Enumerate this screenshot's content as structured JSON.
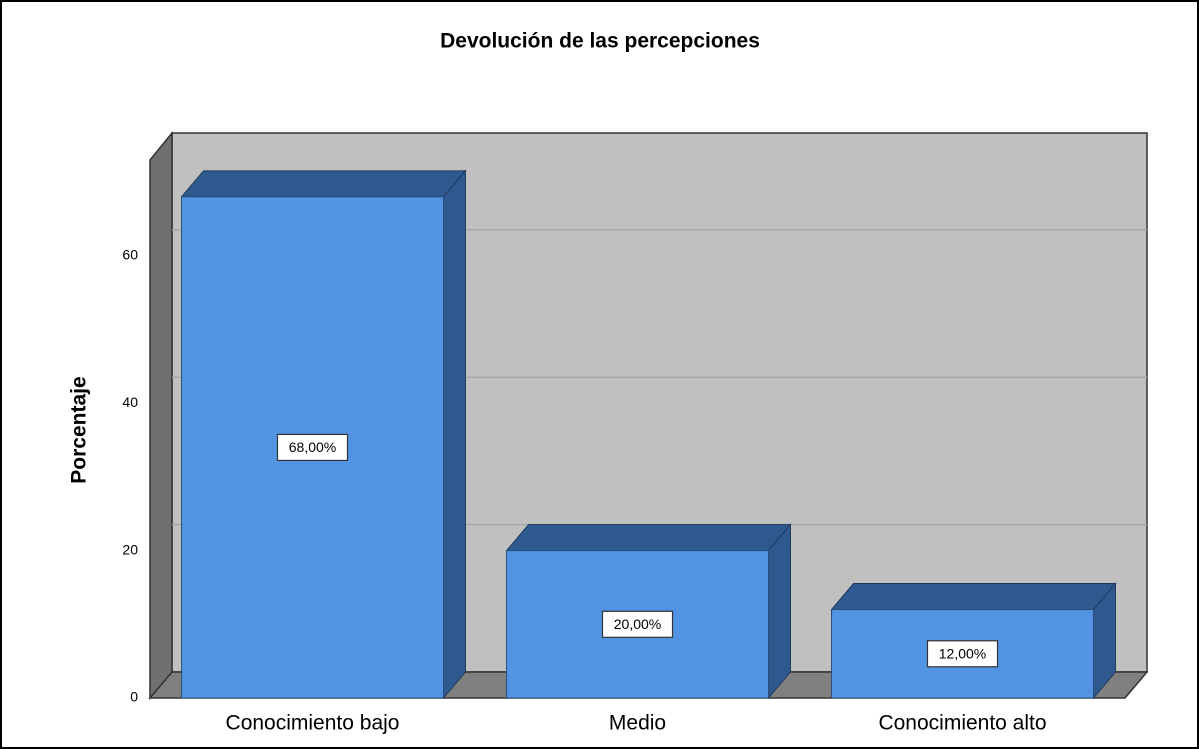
{
  "chart_data": {
    "type": "bar3d",
    "title": "Devolución de las percepciones",
    "y_label": "Porcentaje",
    "categories": [
      "Conocimiento bajo",
      "Medio",
      "Conocimiento alto"
    ],
    "values": [
      68,
      20,
      12
    ],
    "value_labels": [
      "68,00%",
      "20,00%",
      "12,00%"
    ],
    "color": "#5294e3",
    "ylim": [
      0,
      73
    ],
    "yticks": [
      0,
      20,
      40,
      60
    ],
    "grid": true
  }
}
